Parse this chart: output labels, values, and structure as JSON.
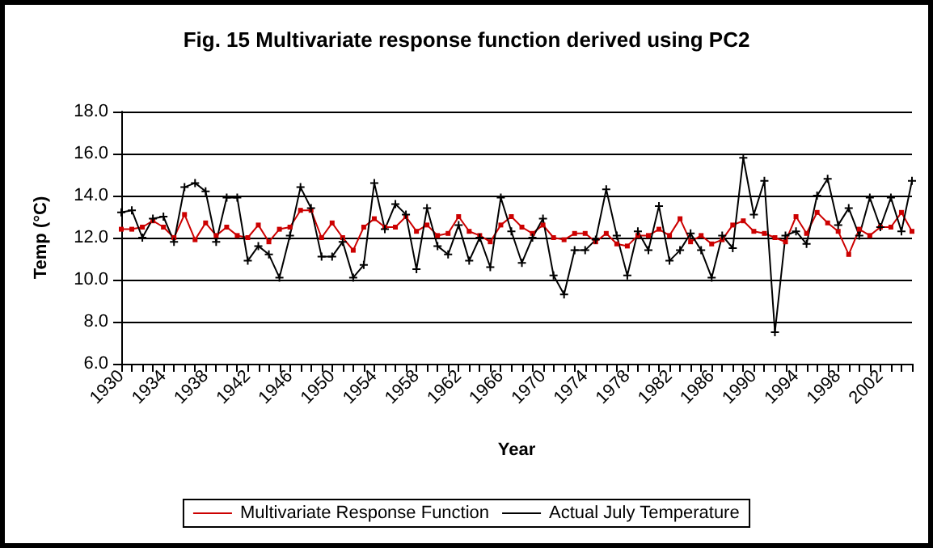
{
  "chart_data": {
    "type": "line",
    "title": "Fig. 15 Multivariate response function derived using PC2",
    "xlabel": "Year",
    "ylabel": "Temp (°C)",
    "categories": [
      "1930",
      null,
      null,
      null,
      "1934",
      null,
      null,
      null,
      "1938",
      null,
      null,
      null,
      "1942",
      null,
      null,
      null,
      "1946",
      null,
      null,
      null,
      "1950",
      null,
      null,
      null,
      "1954",
      null,
      null,
      null,
      "1958",
      null,
      null,
      null,
      "1962",
      null,
      null,
      null,
      "1966",
      null,
      null,
      null,
      "1970",
      null,
      null,
      null,
      "1974",
      null,
      null,
      null,
      "1978",
      null,
      null,
      null,
      "1982",
      null,
      null,
      null,
      "1986",
      null,
      null,
      null,
      "1990",
      null,
      null,
      null,
      "1994",
      null,
      null,
      null,
      "1998",
      null,
      null,
      null,
      "2002",
      null,
      null,
      null
    ],
    "series": [
      {
        "name": "Multivariate Response Function",
        "color": "#cc0000",
        "marker": "square",
        "values": [
          12.4,
          12.4,
          12.5,
          12.8,
          12.5,
          12.0,
          13.1,
          11.9,
          12.7,
          12.1,
          12.5,
          12.1,
          12.0,
          12.6,
          11.8,
          12.4,
          12.5,
          13.3,
          13.3,
          12.0,
          12.7,
          12.0,
          11.4,
          12.5,
          12.9,
          12.5,
          12.5,
          13.0,
          12.3,
          12.6,
          12.1,
          12.2,
          13.0,
          12.3,
          12.1,
          11.8,
          12.6,
          13.0,
          12.5,
          12.2,
          12.6,
          12.0,
          11.9,
          12.2,
          12.2,
          11.8,
          12.2,
          11.7,
          11.6,
          12.1,
          12.1,
          12.4,
          12.1,
          12.9,
          11.8,
          12.1,
          11.7,
          11.9,
          12.6,
          12.8,
          12.3,
          12.2,
          12.0,
          11.8,
          13.0,
          12.2,
          13.2,
          12.7,
          12.3,
          11.2,
          12.4,
          12.1,
          12.5,
          12.5,
          13.2,
          12.3
        ]
      },
      {
        "name": "Actual July Temperature",
        "color": "#000000",
        "marker": "cross",
        "values": [
          13.2,
          13.3,
          12.0,
          12.9,
          13.0,
          11.8,
          14.4,
          14.6,
          14.2,
          11.8,
          13.9,
          13.9,
          10.9,
          11.6,
          11.2,
          10.1,
          12.1,
          14.4,
          13.4,
          11.1,
          11.1,
          11.8,
          10.1,
          10.7,
          14.6,
          12.4,
          13.6,
          13.1,
          10.5,
          13.4,
          11.6,
          11.2,
          12.6,
          10.9,
          12.0,
          10.6,
          13.9,
          12.3,
          10.8,
          12.0,
          12.9,
          10.2,
          9.3,
          11.4,
          11.4,
          11.9,
          14.3,
          12.1,
          10.2,
          12.3,
          11.4,
          13.5,
          10.9,
          11.4,
          12.2,
          11.4,
          10.1,
          12.1,
          11.5,
          15.8,
          13.1,
          14.7,
          7.5,
          12.1,
          12.3,
          11.7,
          14.0,
          14.8,
          12.6,
          13.4,
          12.1,
          13.9,
          12.5,
          13.9,
          12.3,
          14.7
        ]
      }
    ],
    "ylim": [
      6,
      18
    ],
    "yticks": [
      {
        "value": 6,
        "label": "6.0"
      },
      {
        "value": 8,
        "label": "8.0"
      },
      {
        "value": 10,
        "label": "10.0"
      },
      {
        "value": 12,
        "label": "12.0"
      },
      {
        "value": 14,
        "label": "14.0"
      },
      {
        "value": 16,
        "label": "16.0"
      },
      {
        "value": 18,
        "label": "18.0"
      }
    ],
    "grid": "y",
    "legend": "bottom",
    "line_style": "solid"
  }
}
